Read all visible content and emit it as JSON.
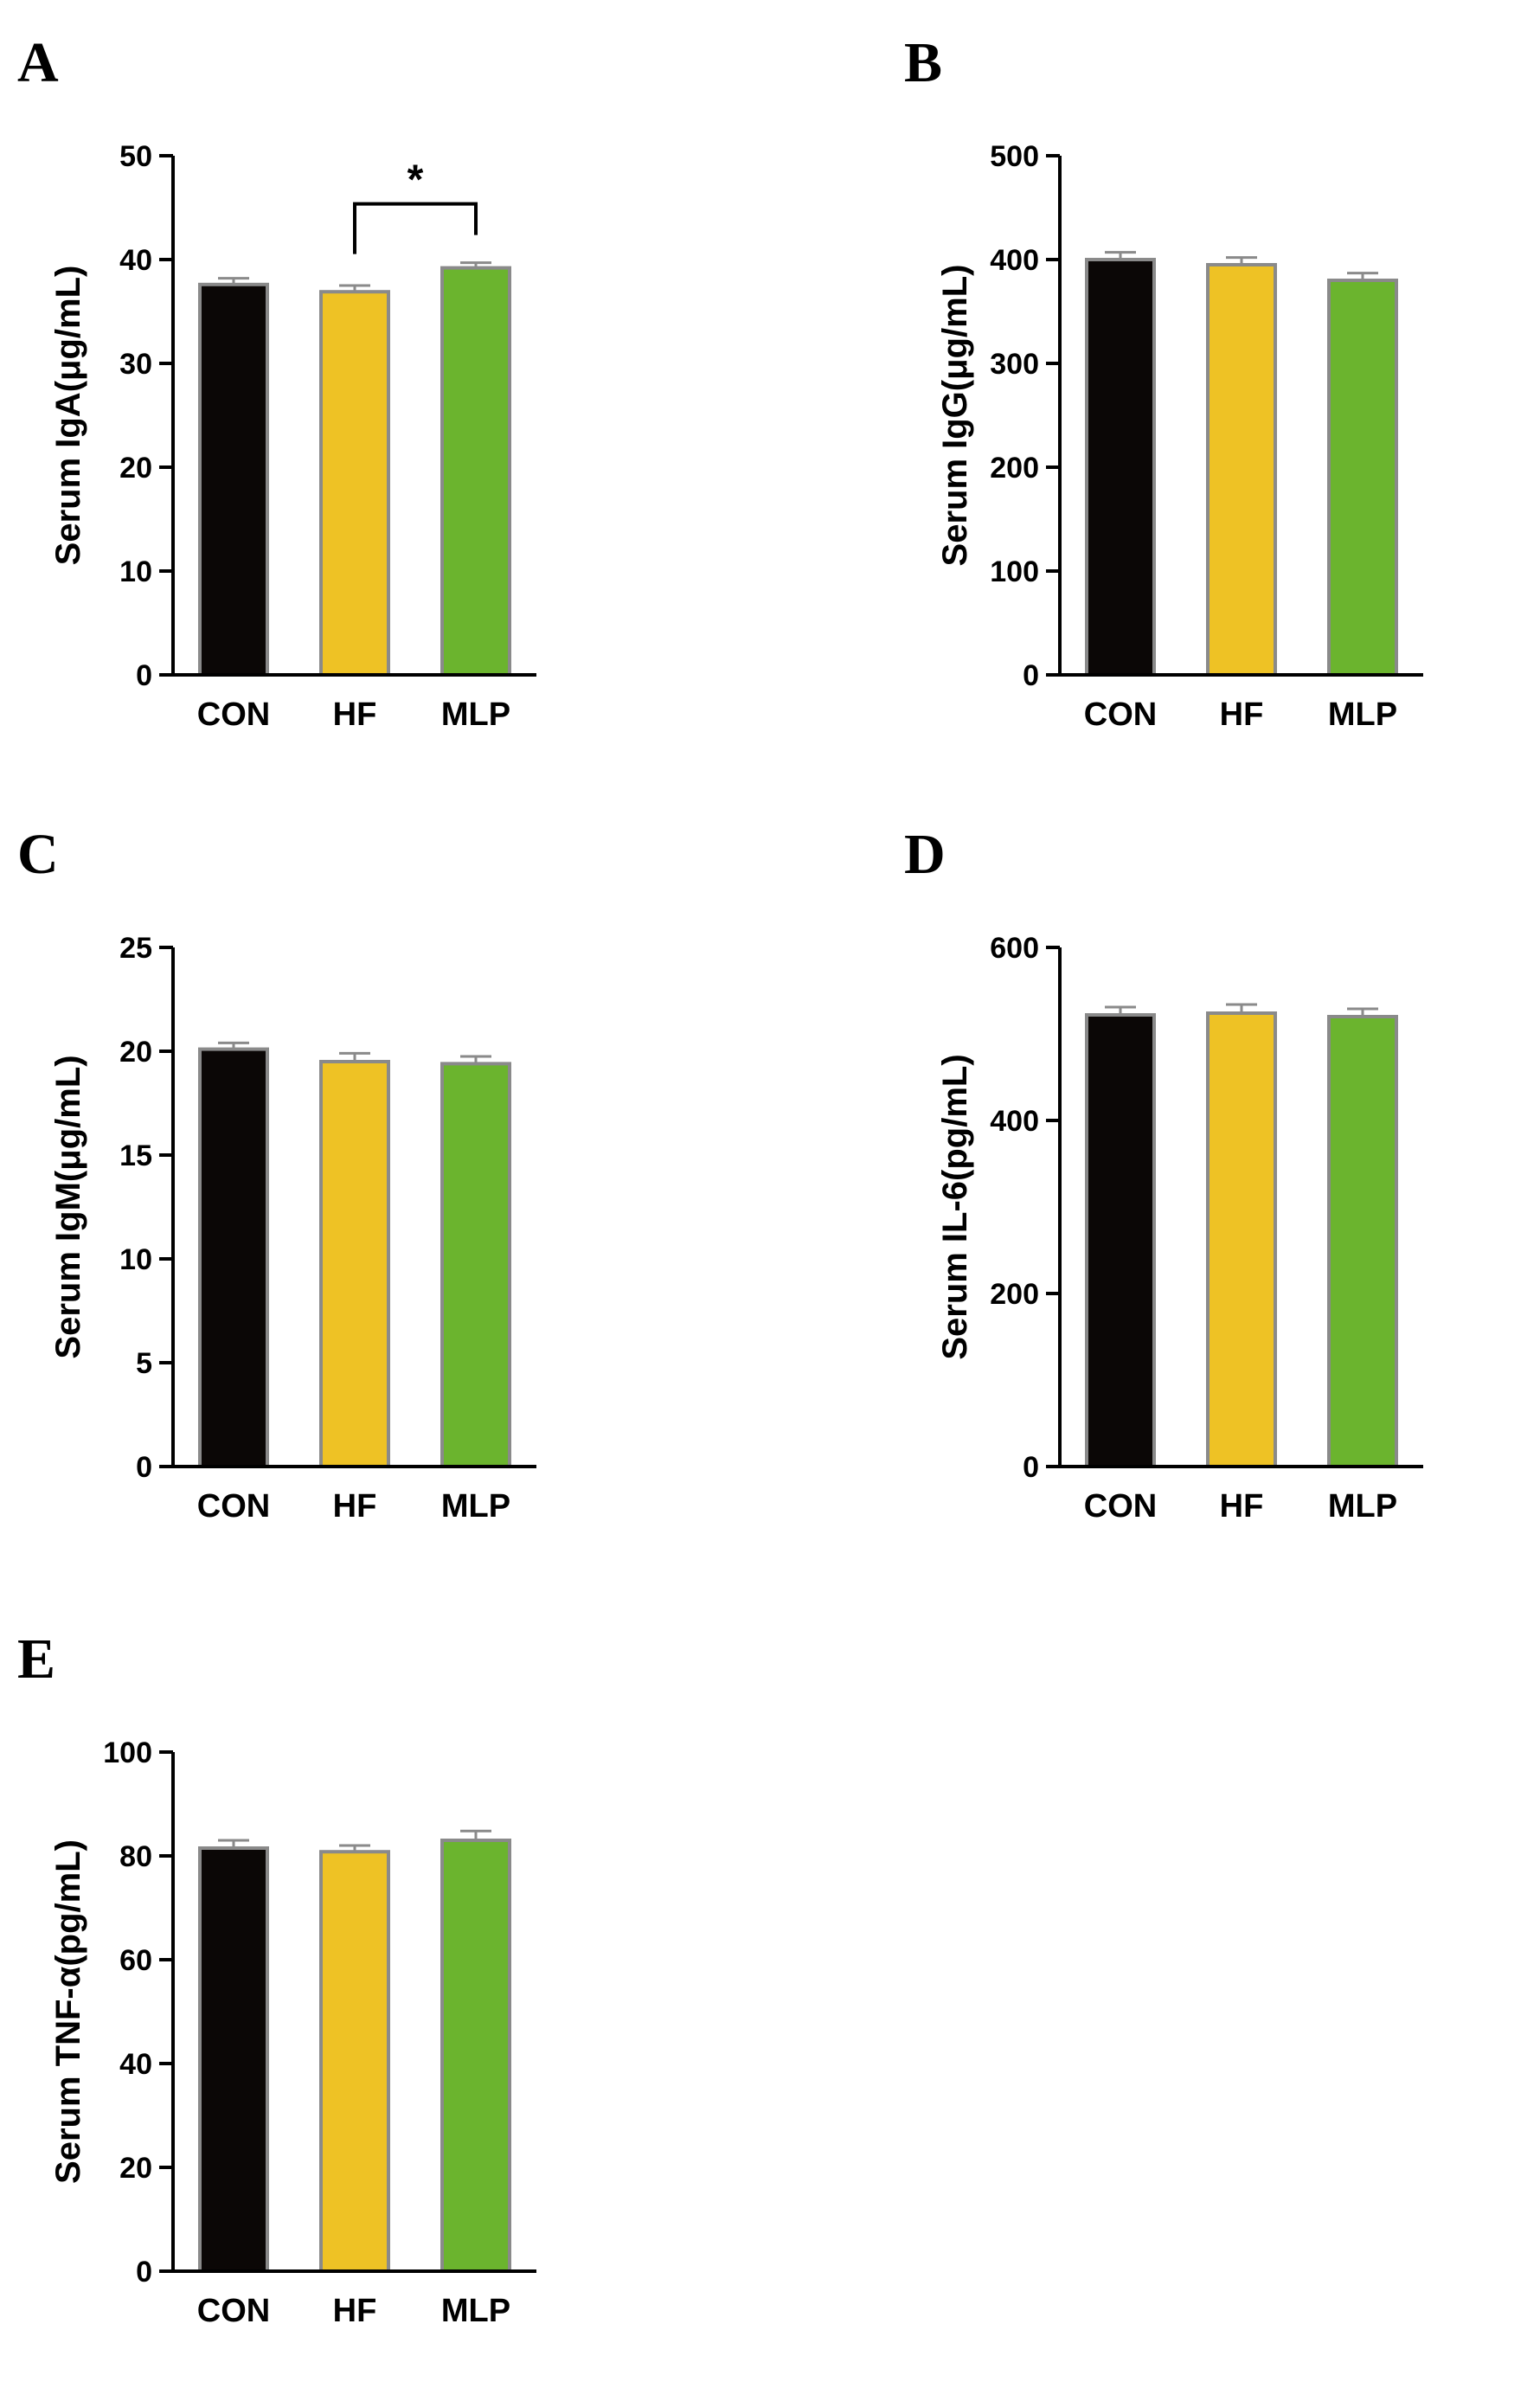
{
  "colors": {
    "CON": "#0b0706",
    "HF": "#eec225",
    "MLP": "#6bb42e",
    "bar_border": "#8a8a8a",
    "axis": "#000000"
  },
  "chart_data": [
    {
      "panel": "A",
      "type": "bar",
      "ylabel": "Serum IgA(μg/mL)",
      "categories": [
        "CON",
        "HF",
        "MLP"
      ],
      "values": [
        37.6,
        36.9,
        39.2
      ],
      "errors": [
        0.6,
        0.6,
        0.5
      ],
      "ylim": [
        0,
        50
      ],
      "yticks": [
        0,
        10,
        20,
        30,
        40,
        50
      ],
      "significance": [
        {
          "from": "HF",
          "to": "MLP",
          "label": "*"
        }
      ]
    },
    {
      "panel": "B",
      "type": "bar",
      "ylabel": "Serum IgG(μg/mL)",
      "categories": [
        "CON",
        "HF",
        "MLP"
      ],
      "values": [
        400,
        395,
        380
      ],
      "errors": [
        7,
        7,
        7
      ],
      "ylim": [
        0,
        500
      ],
      "yticks": [
        0,
        100,
        200,
        300,
        400,
        500
      ],
      "significance": []
    },
    {
      "panel": "C",
      "type": "bar",
      "ylabel": "Serum IgM(μg/mL)",
      "categories": [
        "CON",
        "HF",
        "MLP"
      ],
      "values": [
        20.1,
        19.5,
        19.4
      ],
      "errors": [
        0.3,
        0.4,
        0.35
      ],
      "ylim": [
        0,
        25
      ],
      "yticks": [
        0,
        5,
        10,
        15,
        20,
        25
      ],
      "significance": []
    },
    {
      "panel": "D",
      "type": "bar",
      "ylabel": "Serum IL-6(pg/mL)",
      "categories": [
        "CON",
        "HF",
        "MLP"
      ],
      "values": [
        522,
        524,
        520
      ],
      "errors": [
        9,
        10,
        9
      ],
      "ylim": [
        0,
        600
      ],
      "yticks": [
        0,
        200,
        400,
        600
      ],
      "significance": []
    },
    {
      "panel": "E",
      "type": "bar",
      "ylabel": "Serum TNF-α(pg/mL)",
      "categories": [
        "CON",
        "HF",
        "MLP"
      ],
      "values": [
        81.5,
        80.8,
        83.0
      ],
      "errors": [
        1.5,
        1.2,
        1.8
      ],
      "ylim": [
        0,
        100
      ],
      "yticks": [
        0,
        20,
        40,
        60,
        80,
        100
      ],
      "significance": []
    }
  ]
}
